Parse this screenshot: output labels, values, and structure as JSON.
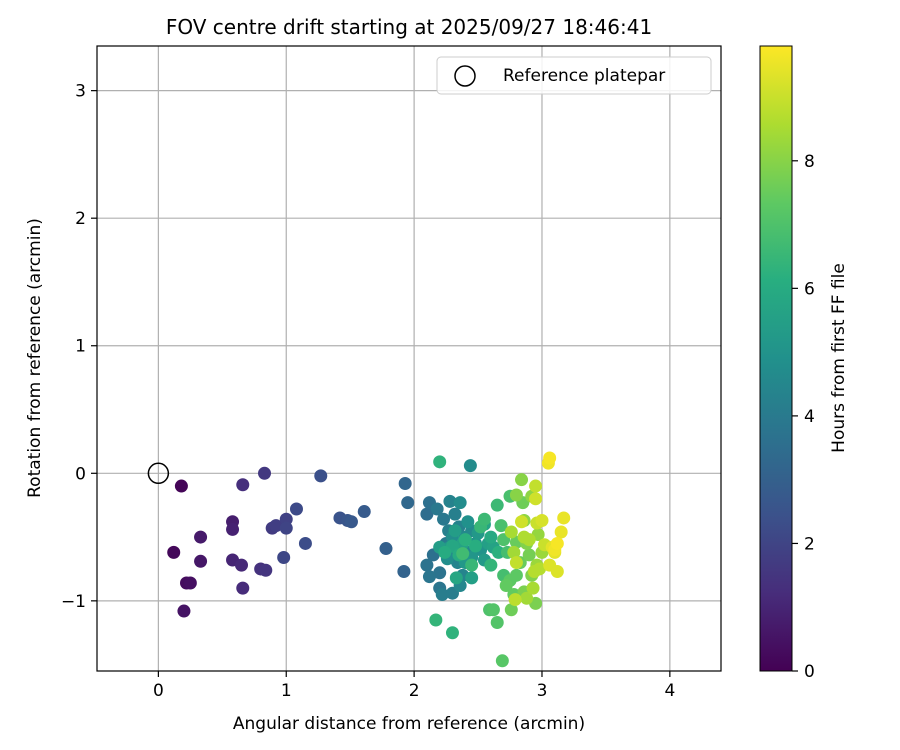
{
  "chart_data": {
    "type": "scatter",
    "title": "FOV centre drift starting at 2025/09/27 18:46:41",
    "xlabel": "Angular distance from reference (arcmin)",
    "ylabel": "Rotation from reference (arcmin)",
    "xlim": [
      -0.48,
      4.4
    ],
    "ylim": [
      -1.55,
      3.35
    ],
    "xticks": [
      0,
      1,
      2,
      3,
      4
    ],
    "yticks": [
      -1,
      0,
      1,
      2,
      3
    ],
    "xtick_labels": [
      "0",
      "1",
      "2",
      "3",
      "4"
    ],
    "ytick_labels": [
      "−1",
      "0",
      "1",
      "2",
      "3"
    ],
    "grid": true,
    "legend": {
      "position": "top-right",
      "label": "Reference platepar"
    },
    "reference_point": {
      "x": 0,
      "y": 0
    },
    "colorbar": {
      "label": "Hours from first FF file",
      "colormap": "viridis",
      "range": [
        0,
        9.8
      ],
      "ticks": [
        0,
        2,
        4,
        6,
        8
      ],
      "tick_labels": [
        "0",
        "2",
        "4",
        "6",
        "8"
      ]
    },
    "series": [
      {
        "name": "FOV centre",
        "points": [
          [
            0.18,
            -0.1,
            0.1
          ],
          [
            0.12,
            -0.62,
            0.2
          ],
          [
            0.22,
            -0.86,
            0.3
          ],
          [
            0.25,
            -0.86,
            0.4
          ],
          [
            0.2,
            -1.08,
            0.5
          ],
          [
            0.33,
            -0.69,
            0.6
          ],
          [
            0.33,
            -0.5,
            0.7
          ],
          [
            0.58,
            -0.38,
            0.8
          ],
          [
            0.58,
            -0.44,
            0.9
          ],
          [
            0.58,
            -0.68,
            1.0
          ],
          [
            0.65,
            -0.72,
            1.1
          ],
          [
            0.66,
            -0.9,
            1.2
          ],
          [
            0.66,
            -0.09,
            1.3
          ],
          [
            0.8,
            -0.75,
            1.4
          ],
          [
            0.84,
            -0.76,
            1.5
          ],
          [
            0.83,
            0.0,
            1.6
          ],
          [
            0.89,
            -0.43,
            1.7
          ],
          [
            0.92,
            -0.41,
            1.8
          ],
          [
            1.0,
            -0.36,
            1.9
          ],
          [
            1.0,
            -0.43,
            2.0
          ],
          [
            0.98,
            -0.66,
            2.1
          ],
          [
            1.08,
            -0.28,
            2.2
          ],
          [
            1.15,
            -0.55,
            2.3
          ],
          [
            1.27,
            -0.02,
            2.4
          ],
          [
            1.42,
            -0.35,
            2.5
          ],
          [
            1.48,
            -0.37,
            2.6
          ],
          [
            1.51,
            -0.38,
            2.7
          ],
          [
            1.61,
            -0.3,
            2.8
          ],
          [
            1.78,
            -0.59,
            3.0
          ],
          [
            1.92,
            -0.77,
            3.1
          ],
          [
            1.93,
            -0.08,
            3.2
          ],
          [
            1.95,
            -0.23,
            3.3
          ],
          [
            2.1,
            -0.32,
            3.5
          ],
          [
            2.12,
            -0.23,
            3.6
          ],
          [
            2.15,
            -0.64,
            3.6
          ],
          [
            2.1,
            -0.72,
            3.7
          ],
          [
            2.2,
            -0.78,
            3.7
          ],
          [
            2.12,
            -0.81,
            3.8
          ],
          [
            2.2,
            -0.9,
            3.8
          ],
          [
            2.18,
            -0.28,
            3.9
          ],
          [
            2.23,
            -0.36,
            3.9
          ],
          [
            2.25,
            -0.55,
            4.0
          ],
          [
            2.3,
            -0.6,
            4.0
          ],
          [
            2.22,
            -0.95,
            4.1
          ],
          [
            2.3,
            -0.94,
            4.1
          ],
          [
            2.27,
            -0.45,
            4.2
          ],
          [
            2.32,
            -0.32,
            4.2
          ],
          [
            2.35,
            -0.42,
            4.3
          ],
          [
            2.28,
            -0.22,
            4.3
          ],
          [
            2.34,
            -0.7,
            4.4
          ],
          [
            2.38,
            -0.8,
            4.4
          ],
          [
            2.36,
            -0.88,
            4.5
          ],
          [
            2.42,
            -0.62,
            4.5
          ],
          [
            2.4,
            -0.5,
            4.6
          ],
          [
            2.45,
            -0.45,
            4.6
          ],
          [
            2.44,
            0.06,
            4.7
          ],
          [
            2.36,
            -0.23,
            4.7
          ],
          [
            2.3,
            -0.5,
            4.8
          ],
          [
            2.26,
            -0.67,
            4.8
          ],
          [
            2.48,
            -0.55,
            4.9
          ],
          [
            2.42,
            -0.38,
            4.9
          ],
          [
            2.52,
            -0.6,
            5.0
          ],
          [
            2.35,
            -0.58,
            5.0
          ],
          [
            2.45,
            -0.66,
            5.1
          ],
          [
            2.28,
            -0.58,
            5.1
          ],
          [
            2.5,
            -0.47,
            5.2
          ],
          [
            2.4,
            -0.7,
            5.2
          ],
          [
            2.55,
            -0.68,
            5.3
          ],
          [
            2.2,
            -0.58,
            5.4
          ],
          [
            2.32,
            -0.45,
            5.4
          ],
          [
            2.58,
            -0.55,
            5.5
          ],
          [
            2.45,
            -0.82,
            5.5
          ],
          [
            2.38,
            -0.55,
            5.6
          ],
          [
            2.62,
            -0.58,
            5.6
          ],
          [
            2.55,
            -0.4,
            5.7
          ],
          [
            2.33,
            -0.82,
            5.8
          ],
          [
            2.3,
            -0.57,
            5.8
          ],
          [
            2.6,
            -0.5,
            5.9
          ],
          [
            2.24,
            -0.62,
            6.0
          ],
          [
            2.35,
            -0.64,
            6.0
          ],
          [
            2.48,
            -0.57,
            6.1
          ],
          [
            2.66,
            -0.62,
            6.2
          ],
          [
            2.4,
            -0.52,
            6.2
          ],
          [
            2.2,
            0.09,
            6.3
          ],
          [
            2.3,
            -1.25,
            6.3
          ],
          [
            2.17,
            -1.15,
            6.4
          ],
          [
            2.6,
            -0.72,
            6.4
          ],
          [
            2.52,
            -0.42,
            6.5
          ],
          [
            2.45,
            -0.72,
            6.5
          ],
          [
            2.65,
            -0.25,
            6.6
          ],
          [
            2.55,
            -0.36,
            6.6
          ],
          [
            2.38,
            -0.63,
            6.7
          ],
          [
            2.73,
            -0.62,
            6.8
          ],
          [
            2.7,
            -0.8,
            6.8
          ],
          [
            2.75,
            -0.18,
            6.9
          ],
          [
            2.68,
            -0.41,
            6.9
          ],
          [
            2.7,
            -0.52,
            7.0
          ],
          [
            2.59,
            -1.07,
            7.0
          ],
          [
            2.62,
            -1.07,
            7.1
          ],
          [
            2.65,
            -1.17,
            7.1
          ],
          [
            2.69,
            -1.47,
            7.2
          ],
          [
            2.75,
            -0.84,
            7.3
          ],
          [
            2.8,
            -0.8,
            7.3
          ],
          [
            2.78,
            -0.95,
            7.4
          ],
          [
            2.72,
            -0.88,
            7.4
          ],
          [
            2.83,
            -0.7,
            7.5
          ],
          [
            2.8,
            -0.54,
            7.5
          ],
          [
            2.85,
            -0.23,
            7.6
          ],
          [
            2.76,
            -1.07,
            7.6
          ],
          [
            2.9,
            -0.64,
            7.7
          ],
          [
            2.86,
            -0.93,
            7.8
          ],
          [
            2.95,
            -1.02,
            7.8
          ],
          [
            2.92,
            -0.8,
            7.9
          ],
          [
            2.88,
            -0.55,
            7.9
          ],
          [
            2.84,
            -0.05,
            8.0
          ],
          [
            2.8,
            -0.17,
            8.0
          ],
          [
            2.86,
            -0.37,
            8.1
          ],
          [
            2.92,
            -0.18,
            8.1
          ],
          [
            2.97,
            -0.48,
            8.2
          ],
          [
            3.0,
            -0.62,
            8.3
          ],
          [
            2.96,
            -0.72,
            8.3
          ],
          [
            2.78,
            -0.62,
            8.4
          ],
          [
            2.88,
            -0.98,
            8.4
          ],
          [
            2.93,
            -0.9,
            8.5
          ],
          [
            2.76,
            -0.46,
            8.5
          ],
          [
            2.9,
            -0.52,
            8.6
          ],
          [
            2.86,
            -0.5,
            8.6
          ],
          [
            2.98,
            -0.75,
            8.7
          ],
          [
            2.94,
            -0.77,
            8.7
          ],
          [
            2.79,
            -0.99,
            8.8
          ],
          [
            2.8,
            -0.7,
            8.9
          ],
          [
            2.95,
            -0.1,
            8.9
          ],
          [
            3.02,
            -0.56,
            9.0
          ],
          [
            2.96,
            -0.39,
            9.0
          ],
          [
            2.84,
            -0.38,
            9.1
          ],
          [
            2.95,
            -0.2,
            9.1
          ],
          [
            3.0,
            -0.37,
            9.2
          ],
          [
            3.06,
            -0.72,
            9.3
          ],
          [
            3.12,
            -0.77,
            9.3
          ],
          [
            3.1,
            -0.62,
            9.4
          ],
          [
            3.08,
            -0.58,
            9.4
          ],
          [
            3.15,
            -0.46,
            9.5
          ],
          [
            3.17,
            -0.35,
            9.5
          ],
          [
            3.1,
            -0.6,
            9.6
          ],
          [
            3.05,
            0.08,
            9.6
          ],
          [
            3.06,
            0.12,
            9.7
          ],
          [
            3.12,
            -0.55,
            9.7
          ]
        ]
      }
    ]
  }
}
